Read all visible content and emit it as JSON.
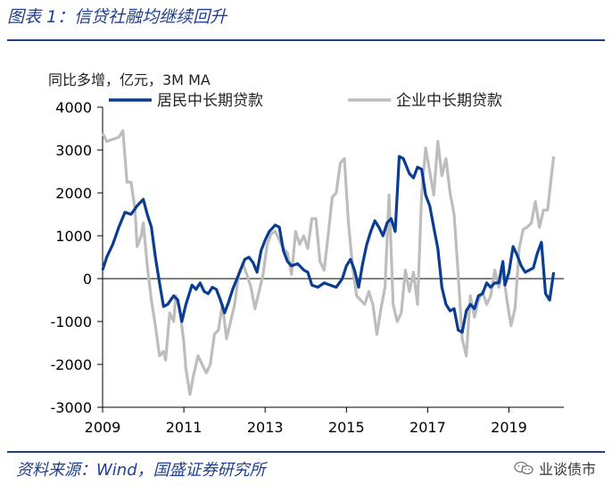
{
  "figure_title": "图表 1：信贷社融均继续回升",
  "source": "资料来源：Wind，国盛证券研究所",
  "brand": "业谈债市",
  "brand_icon": "wechat-icon",
  "colors": {
    "accent": "#1f3f8f",
    "series1": "#0a3d91",
    "series2": "#bdbdbd"
  },
  "chart_data": {
    "type": "line",
    "title": "",
    "unit_label": "同比多增，亿元，3M MA",
    "xlabel": "",
    "ylabel": "",
    "xlim": [
      2009,
      2020.35
    ],
    "ylim": [
      -3000,
      4000
    ],
    "x_ticks": [
      2009,
      2011,
      2013,
      2015,
      2017,
      2019
    ],
    "y_ticks": [
      -3000,
      -2000,
      -1000,
      0,
      1000,
      2000,
      3000,
      4000
    ],
    "legend": "top",
    "grid": false,
    "series": [
      {
        "name": "居民中长期贷款",
        "color": "#0a3d91",
        "points": [
          [
            2009.0,
            200
          ],
          [
            2009.1,
            500
          ],
          [
            2009.25,
            800
          ],
          [
            2009.4,
            1200
          ],
          [
            2009.55,
            1550
          ],
          [
            2009.7,
            1500
          ],
          [
            2009.85,
            1700
          ],
          [
            2010.0,
            1850
          ],
          [
            2010.1,
            1500
          ],
          [
            2010.2,
            1200
          ],
          [
            2010.3,
            500
          ],
          [
            2010.4,
            -100
          ],
          [
            2010.5,
            -650
          ],
          [
            2010.6,
            -600
          ],
          [
            2010.75,
            -400
          ],
          [
            2010.85,
            -500
          ],
          [
            2010.95,
            -1000
          ],
          [
            2011.05,
            -600
          ],
          [
            2011.2,
            -150
          ],
          [
            2011.3,
            -250
          ],
          [
            2011.4,
            -100
          ],
          [
            2011.5,
            -300
          ],
          [
            2011.6,
            -350
          ],
          [
            2011.7,
            -200
          ],
          [
            2011.8,
            -250
          ],
          [
            2011.9,
            -500
          ],
          [
            2012.0,
            -800
          ],
          [
            2012.1,
            -550
          ],
          [
            2012.2,
            -250
          ],
          [
            2012.35,
            100
          ],
          [
            2012.5,
            450
          ],
          [
            2012.6,
            500
          ],
          [
            2012.7,
            380
          ],
          [
            2012.8,
            150
          ],
          [
            2012.9,
            650
          ],
          [
            2013.0,
            900
          ],
          [
            2013.1,
            1100
          ],
          [
            2013.25,
            1250
          ],
          [
            2013.35,
            1200
          ],
          [
            2013.45,
            650
          ],
          [
            2013.55,
            400
          ],
          [
            2013.65,
            300
          ],
          [
            2013.8,
            350
          ],
          [
            2013.95,
            200
          ],
          [
            2014.05,
            150
          ],
          [
            2014.15,
            -150
          ],
          [
            2014.3,
            -200
          ],
          [
            2014.45,
            -100
          ],
          [
            2014.6,
            -150
          ],
          [
            2014.75,
            -200
          ],
          [
            2014.9,
            0
          ],
          [
            2015.0,
            300
          ],
          [
            2015.1,
            450
          ],
          [
            2015.2,
            200
          ],
          [
            2015.3,
            -200
          ],
          [
            2015.4,
            350
          ],
          [
            2015.5,
            800
          ],
          [
            2015.6,
            1100
          ],
          [
            2015.7,
            1350
          ],
          [
            2015.8,
            1200
          ],
          [
            2015.9,
            1000
          ],
          [
            2016.0,
            1300
          ],
          [
            2016.1,
            1400
          ],
          [
            2016.2,
            1100
          ],
          [
            2016.3,
            2850
          ],
          [
            2016.4,
            2800
          ],
          [
            2016.55,
            2450
          ],
          [
            2016.65,
            2350
          ],
          [
            2016.75,
            2600
          ],
          [
            2016.85,
            2550
          ],
          [
            2016.95,
            1950
          ],
          [
            2017.05,
            1700
          ],
          [
            2017.15,
            1200
          ],
          [
            2017.25,
            700
          ],
          [
            2017.35,
            -200
          ],
          [
            2017.45,
            -600
          ],
          [
            2017.55,
            -750
          ],
          [
            2017.65,
            -700
          ],
          [
            2017.75,
            -1200
          ],
          [
            2017.85,
            -1250
          ],
          [
            2017.95,
            -750
          ],
          [
            2018.05,
            -600
          ],
          [
            2018.15,
            -700
          ],
          [
            2018.25,
            -400
          ],
          [
            2018.35,
            -350
          ],
          [
            2018.45,
            -100
          ],
          [
            2018.55,
            -200
          ],
          [
            2018.65,
            -100
          ],
          [
            2018.75,
            -100
          ],
          [
            2018.85,
            400
          ],
          [
            2018.9,
            -150
          ],
          [
            2019.0,
            150
          ],
          [
            2019.1,
            750
          ],
          [
            2019.2,
            550
          ],
          [
            2019.3,
            300
          ],
          [
            2019.4,
            150
          ],
          [
            2019.5,
            200
          ],
          [
            2019.6,
            250
          ],
          [
            2019.7,
            600
          ],
          [
            2019.8,
            850
          ],
          [
            2019.9,
            -350
          ],
          [
            2020.0,
            -500
          ],
          [
            2020.1,
            150
          ]
        ]
      },
      {
        "name": "企业中长期贷款",
        "color": "#bdbdbd",
        "points": [
          [
            2009.0,
            3400
          ],
          [
            2009.1,
            3200
          ],
          [
            2009.25,
            3250
          ],
          [
            2009.4,
            3300
          ],
          [
            2009.5,
            3450
          ],
          [
            2009.6,
            2250
          ],
          [
            2009.7,
            2250
          ],
          [
            2009.8,
            1600
          ],
          [
            2009.85,
            750
          ],
          [
            2009.95,
            1000
          ],
          [
            2010.0,
            1300
          ],
          [
            2010.1,
            300
          ],
          [
            2010.2,
            -500
          ],
          [
            2010.3,
            -1100
          ],
          [
            2010.4,
            -1800
          ],
          [
            2010.5,
            -1700
          ],
          [
            2010.55,
            -1900
          ],
          [
            2010.65,
            -800
          ],
          [
            2010.75,
            -1000
          ],
          [
            2010.8,
            -400
          ],
          [
            2010.9,
            -700
          ],
          [
            2011.0,
            -1500
          ],
          [
            2011.05,
            -2100
          ],
          [
            2011.15,
            -2700
          ],
          [
            2011.25,
            -2200
          ],
          [
            2011.35,
            -1800
          ],
          [
            2011.45,
            -2000
          ],
          [
            2011.55,
            -2200
          ],
          [
            2011.65,
            -2000
          ],
          [
            2011.75,
            -1300
          ],
          [
            2011.85,
            -1200
          ],
          [
            2011.95,
            -600
          ],
          [
            2012.05,
            -1400
          ],
          [
            2012.15,
            -1000
          ],
          [
            2012.25,
            -600
          ],
          [
            2012.35,
            100
          ],
          [
            2012.45,
            350
          ],
          [
            2012.55,
            100
          ],
          [
            2012.65,
            -200
          ],
          [
            2012.75,
            -700
          ],
          [
            2012.85,
            -300
          ],
          [
            2012.95,
            100
          ],
          [
            2013.05,
            800
          ],
          [
            2013.15,
            1050
          ],
          [
            2013.25,
            1100
          ],
          [
            2013.35,
            900
          ],
          [
            2013.45,
            700
          ],
          [
            2013.55,
            600
          ],
          [
            2013.65,
            100
          ],
          [
            2013.75,
            1100
          ],
          [
            2013.85,
            800
          ],
          [
            2013.95,
            1000
          ],
          [
            2014.05,
            700
          ],
          [
            2014.15,
            1400
          ],
          [
            2014.25,
            1400
          ],
          [
            2014.35,
            400
          ],
          [
            2014.45,
            200
          ],
          [
            2014.55,
            1000
          ],
          [
            2014.65,
            1900
          ],
          [
            2014.75,
            2000
          ],
          [
            2014.85,
            2700
          ],
          [
            2014.95,
            2800
          ],
          [
            2015.05,
            1300
          ],
          [
            2015.15,
            300
          ],
          [
            2015.25,
            -400
          ],
          [
            2015.35,
            -500
          ],
          [
            2015.45,
            -600
          ],
          [
            2015.55,
            -300
          ],
          [
            2015.65,
            -600
          ],
          [
            2015.75,
            -1300
          ],
          [
            2015.85,
            -700
          ],
          [
            2015.95,
            -200
          ],
          [
            2016.05,
            1950
          ],
          [
            2016.15,
            -600
          ],
          [
            2016.25,
            -1000
          ],
          [
            2016.35,
            -800
          ],
          [
            2016.45,
            200
          ],
          [
            2016.55,
            -300
          ],
          [
            2016.65,
            150
          ],
          [
            2016.75,
            -600
          ],
          [
            2016.85,
            1950
          ],
          [
            2016.95,
            3050
          ],
          [
            2017.05,
            2500
          ],
          [
            2017.15,
            1950
          ],
          [
            2017.25,
            3200
          ],
          [
            2017.35,
            2400
          ],
          [
            2017.45,
            2800
          ],
          [
            2017.55,
            2000
          ],
          [
            2017.65,
            1500
          ],
          [
            2017.75,
            100
          ],
          [
            2017.85,
            -1400
          ],
          [
            2017.95,
            -1800
          ],
          [
            2018.05,
            -400
          ],
          [
            2018.15,
            -900
          ],
          [
            2018.25,
            -500
          ],
          [
            2018.35,
            -300
          ],
          [
            2018.45,
            -600
          ],
          [
            2018.55,
            -400
          ],
          [
            2018.65,
            200
          ],
          [
            2018.75,
            -200
          ],
          [
            2018.85,
            200
          ],
          [
            2018.95,
            -500
          ],
          [
            2019.05,
            -1100
          ],
          [
            2019.15,
            -700
          ],
          [
            2019.25,
            700
          ],
          [
            2019.35,
            1150
          ],
          [
            2019.45,
            1200
          ],
          [
            2019.55,
            1300
          ],
          [
            2019.65,
            1800
          ],
          [
            2019.75,
            1200
          ],
          [
            2019.85,
            1600
          ],
          [
            2019.95,
            1600
          ],
          [
            2020.1,
            2850
          ]
        ]
      }
    ]
  }
}
